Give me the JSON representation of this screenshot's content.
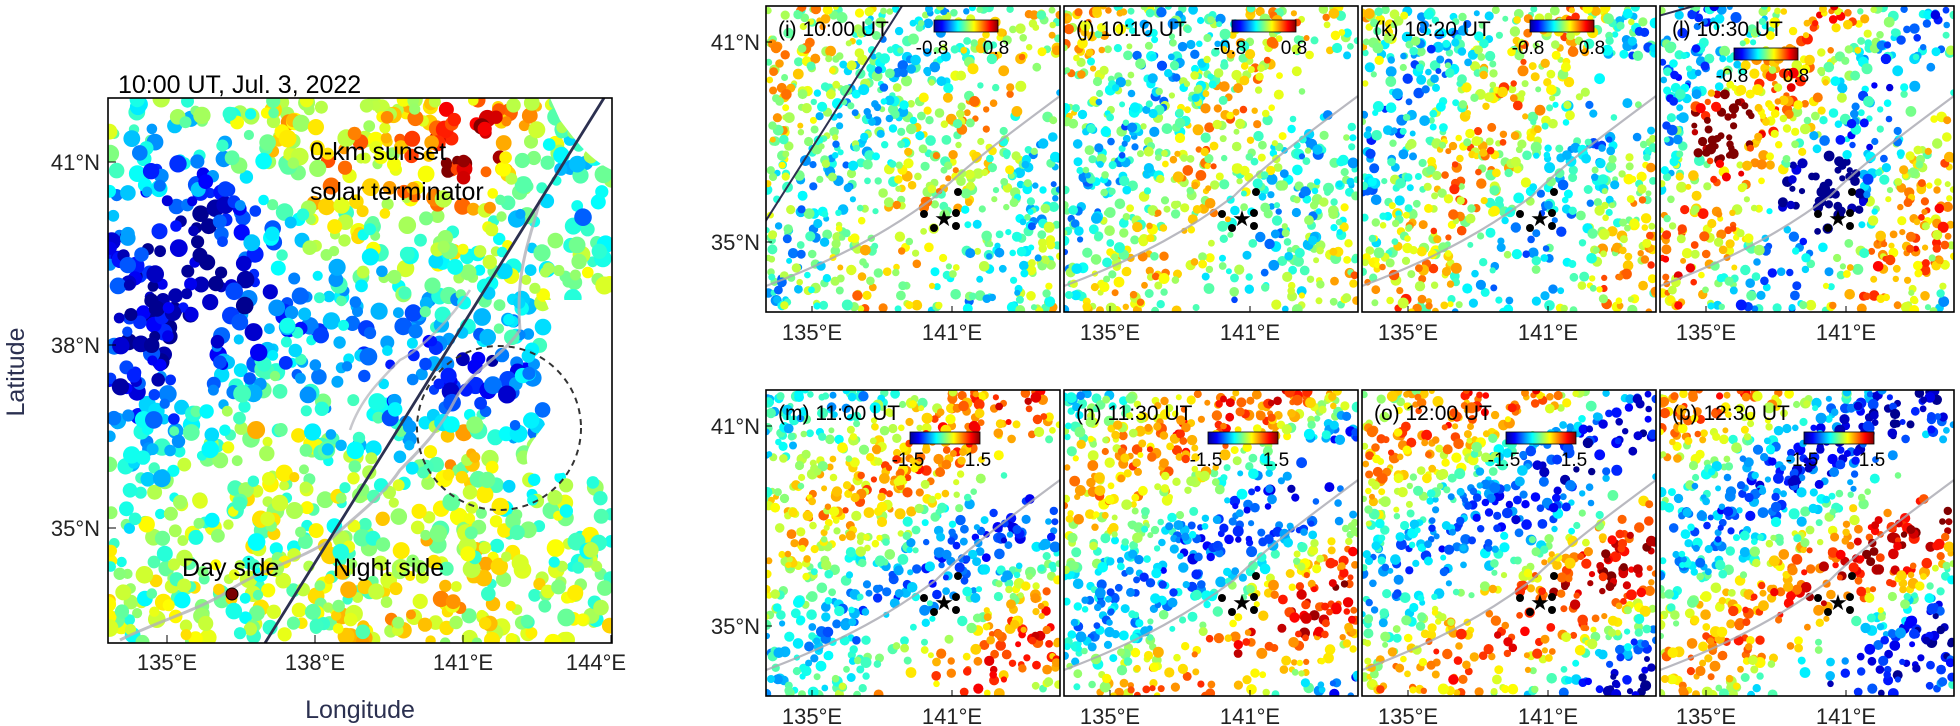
{
  "main_map": {
    "title": "10:00 UT, Jul. 3, 2022",
    "annotation_terminator": [
      "0-km sunset",
      "solar terminator"
    ],
    "label_day": "Day side",
    "label_night": "Night side",
    "x_axis_title": "Longitude",
    "y_axis_title": "Latitude",
    "x_ticks": [
      "135°E",
      "138°E",
      "141°E",
      "144°E"
    ],
    "y_ticks": [
      "41°N",
      "38°N",
      "35°N"
    ],
    "circle_marker": "dashed circle",
    "terminator_line": "solid dark line"
  },
  "small_x_ticks": [
    "135°E",
    "141°E"
  ],
  "small_y_ticks": [
    "41°N",
    "35°N"
  ],
  "panels": [
    {
      "label": "(i) 10:00 UT",
      "cb_min": "-0.8",
      "cb_max": "0.8",
      "terminator": true
    },
    {
      "label": "(j) 10:10 UT",
      "cb_min": "-0.8",
      "cb_max": "0.8",
      "terminator": true
    },
    {
      "label": "(k) 10:20 UT",
      "cb_min": "-0.8",
      "cb_max": "0.8",
      "terminator": true
    },
    {
      "label": "(l) 10:30 UT",
      "cb_min": "-0.8",
      "cb_max": "0.8",
      "terminator": true
    },
    {
      "label": "(m) 11:00 UT",
      "cb_min": "-1.5",
      "cb_max": "1.5",
      "terminator": false
    },
    {
      "label": "(n) 11:30 UT",
      "cb_min": "-1.5",
      "cb_max": "1.5",
      "terminator": false
    },
    {
      "label": "(o) 12:00 UT",
      "cb_min": "-1.5",
      "cb_max": "1.5",
      "terminator": false
    },
    {
      "label": "(p) 12:30 UT",
      "cb_min": "-1.5",
      "cb_max": "1.5",
      "terminator": false
    }
  ],
  "colormap": [
    "#00008f",
    "#0000ff",
    "#0080ff",
    "#00ffff",
    "#80ff80",
    "#ffff00",
    "#ff8000",
    "#ff0000",
    "#800000"
  ]
}
